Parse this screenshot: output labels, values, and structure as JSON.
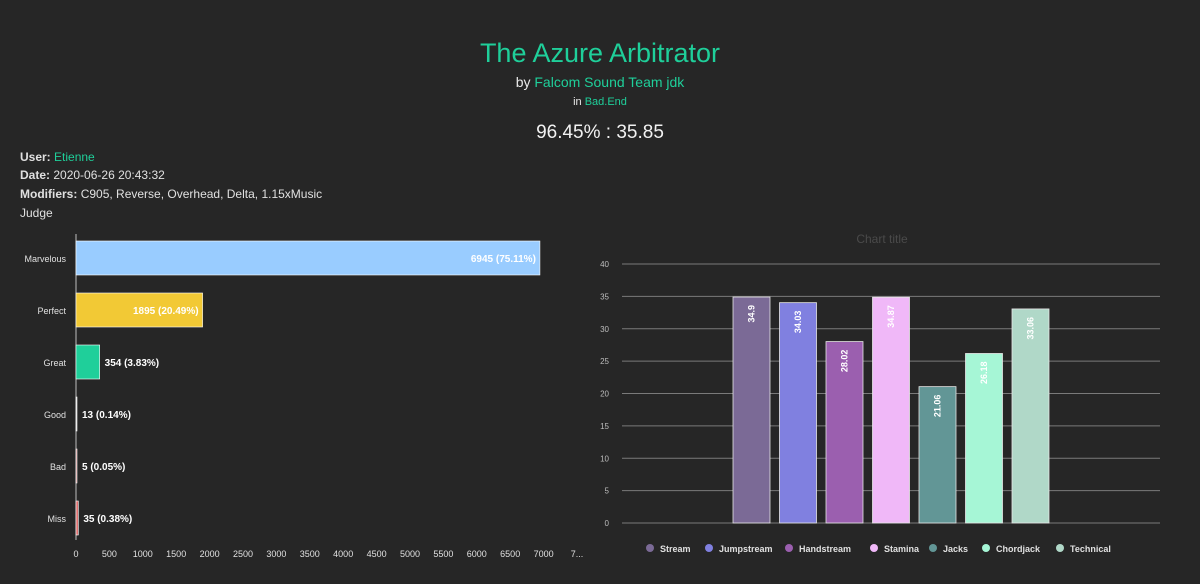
{
  "header": {
    "title": "The Azure Arbitrator",
    "by_prefix": "by",
    "artist": "Falcom Sound Team jdk",
    "in_prefix": "in",
    "pack": "Bad.End",
    "score": "96.45% : 35.85"
  },
  "info": {
    "user_label": "User:",
    "user": "Etienne",
    "date_label": "Date:",
    "date": "2020-06-26 20:43:32",
    "modifiers_label": "Modifiers:",
    "modifiers": "C905, Reverse, Overhead, Delta, 1.15xMusic",
    "judge_label": "Judge"
  },
  "colors": {
    "accent": "#1fcf9a",
    "background": "#262626"
  },
  "chart_data": [
    {
      "type": "bar",
      "orientation": "horizontal",
      "categories": [
        "Marvelous",
        "Perfect",
        "Great",
        "Good",
        "Bad",
        "Miss"
      ],
      "values": [
        6945,
        1895,
        354,
        13,
        5,
        35
      ],
      "data_labels": [
        "6945 (75.11%)",
        "1895 (20.49%)",
        "354 (3.83%)",
        "13 (0.14%)",
        "5 (0.05%)",
        "35 (0.38%)"
      ],
      "colors": [
        "#99ccff",
        "#f2c935",
        "#1fcf9a",
        "#d0d0d0",
        "#cc6666",
        "#e07070"
      ],
      "xticks": [
        "0",
        "500",
        "1000",
        "1500",
        "2000",
        "2500",
        "3000",
        "3500",
        "4000",
        "4500",
        "5000",
        "5500",
        "6000",
        "6500",
        "7000",
        "7..."
      ],
      "xlim": [
        0,
        7500
      ]
    },
    {
      "type": "bar",
      "title": "Chart title",
      "categories": [
        "Stream",
        "Jumpstream",
        "Handstream",
        "Stamina",
        "Jacks",
        "Chordjack",
        "Technical"
      ],
      "values": [
        34.9,
        34.03,
        28.02,
        34.87,
        21.06,
        26.18,
        33.06
      ],
      "data_labels": [
        "34.9",
        "34.03",
        "28.02",
        "34.87",
        "21.06",
        "26.18",
        "33.06"
      ],
      "colors": [
        "#7b6a96",
        "#8080e0",
        "#9b5faf",
        "#f0b8f8",
        "#629696",
        "#a6f6d6",
        "#b0d8c8"
      ],
      "ylim": [
        0,
        40
      ],
      "yticks": [
        "0",
        "5",
        "10",
        "15",
        "20",
        "25",
        "30",
        "35",
        "40"
      ],
      "grid": true,
      "legend": "bottom"
    }
  ]
}
